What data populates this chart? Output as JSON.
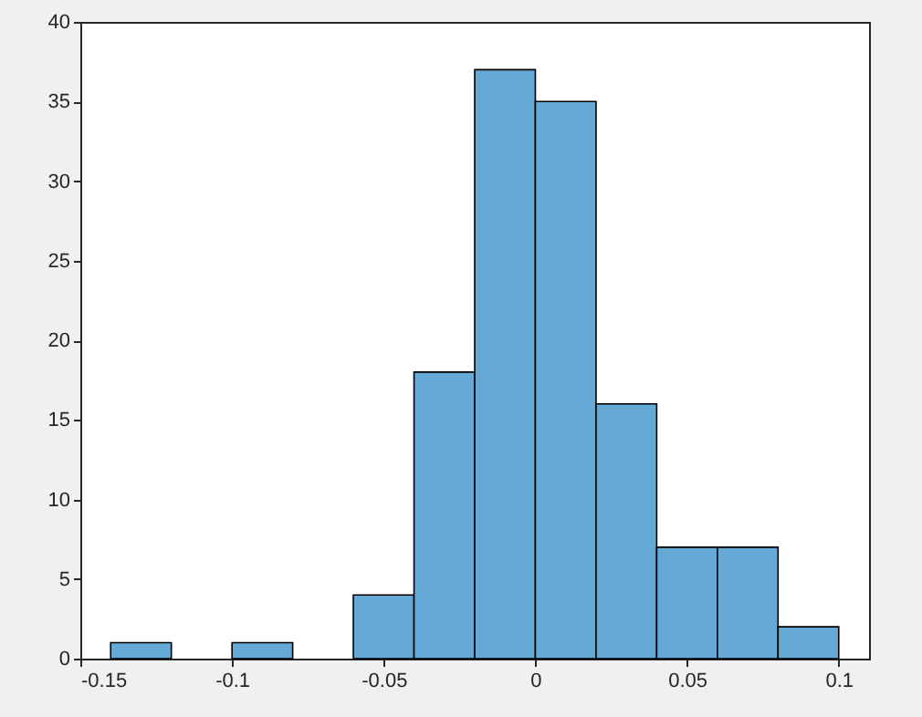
{
  "chart_data": {
    "type": "histogram",
    "bins": [
      -0.14,
      -0.12,
      -0.1,
      -0.08,
      -0.06,
      -0.04,
      -0.02,
      0,
      0.02,
      0.04,
      0.06,
      0.08,
      0.1
    ],
    "values": [
      1,
      0,
      1,
      0,
      4,
      18,
      37,
      35,
      16,
      7,
      7,
      2
    ],
    "color": "#65a9d7",
    "xlim": [
      -0.15,
      0.11
    ],
    "xticks": [
      -0.15,
      -0.1,
      -0.05,
      0,
      0.05,
      0.1
    ],
    "ylim": [
      0,
      40
    ],
    "yticks": [
      0,
      5,
      10,
      15,
      20,
      25,
      30,
      35,
      40
    ],
    "grid": false
  }
}
